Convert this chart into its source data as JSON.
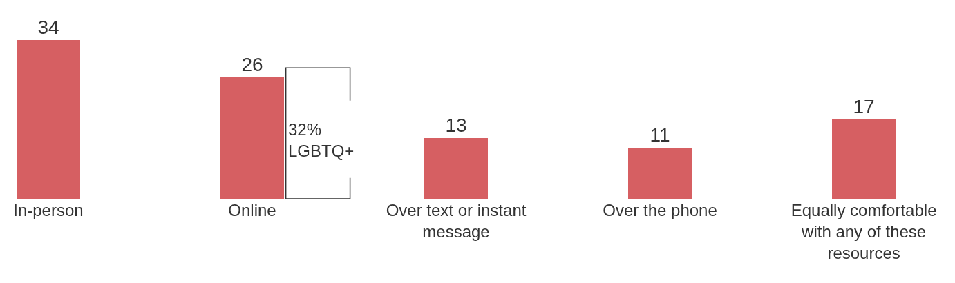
{
  "chart_data": {
    "type": "bar",
    "categories": [
      "In-person",
      "Online",
      "Over text or instant message",
      "Over the phone",
      "Equally comfortable with any of these resources"
    ],
    "values": [
      34,
      26,
      13,
      11,
      17
    ],
    "color": "#d65f62",
    "data_labels": true,
    "annotations": [
      "32%\nLGBTQ+"
    ]
  }
}
